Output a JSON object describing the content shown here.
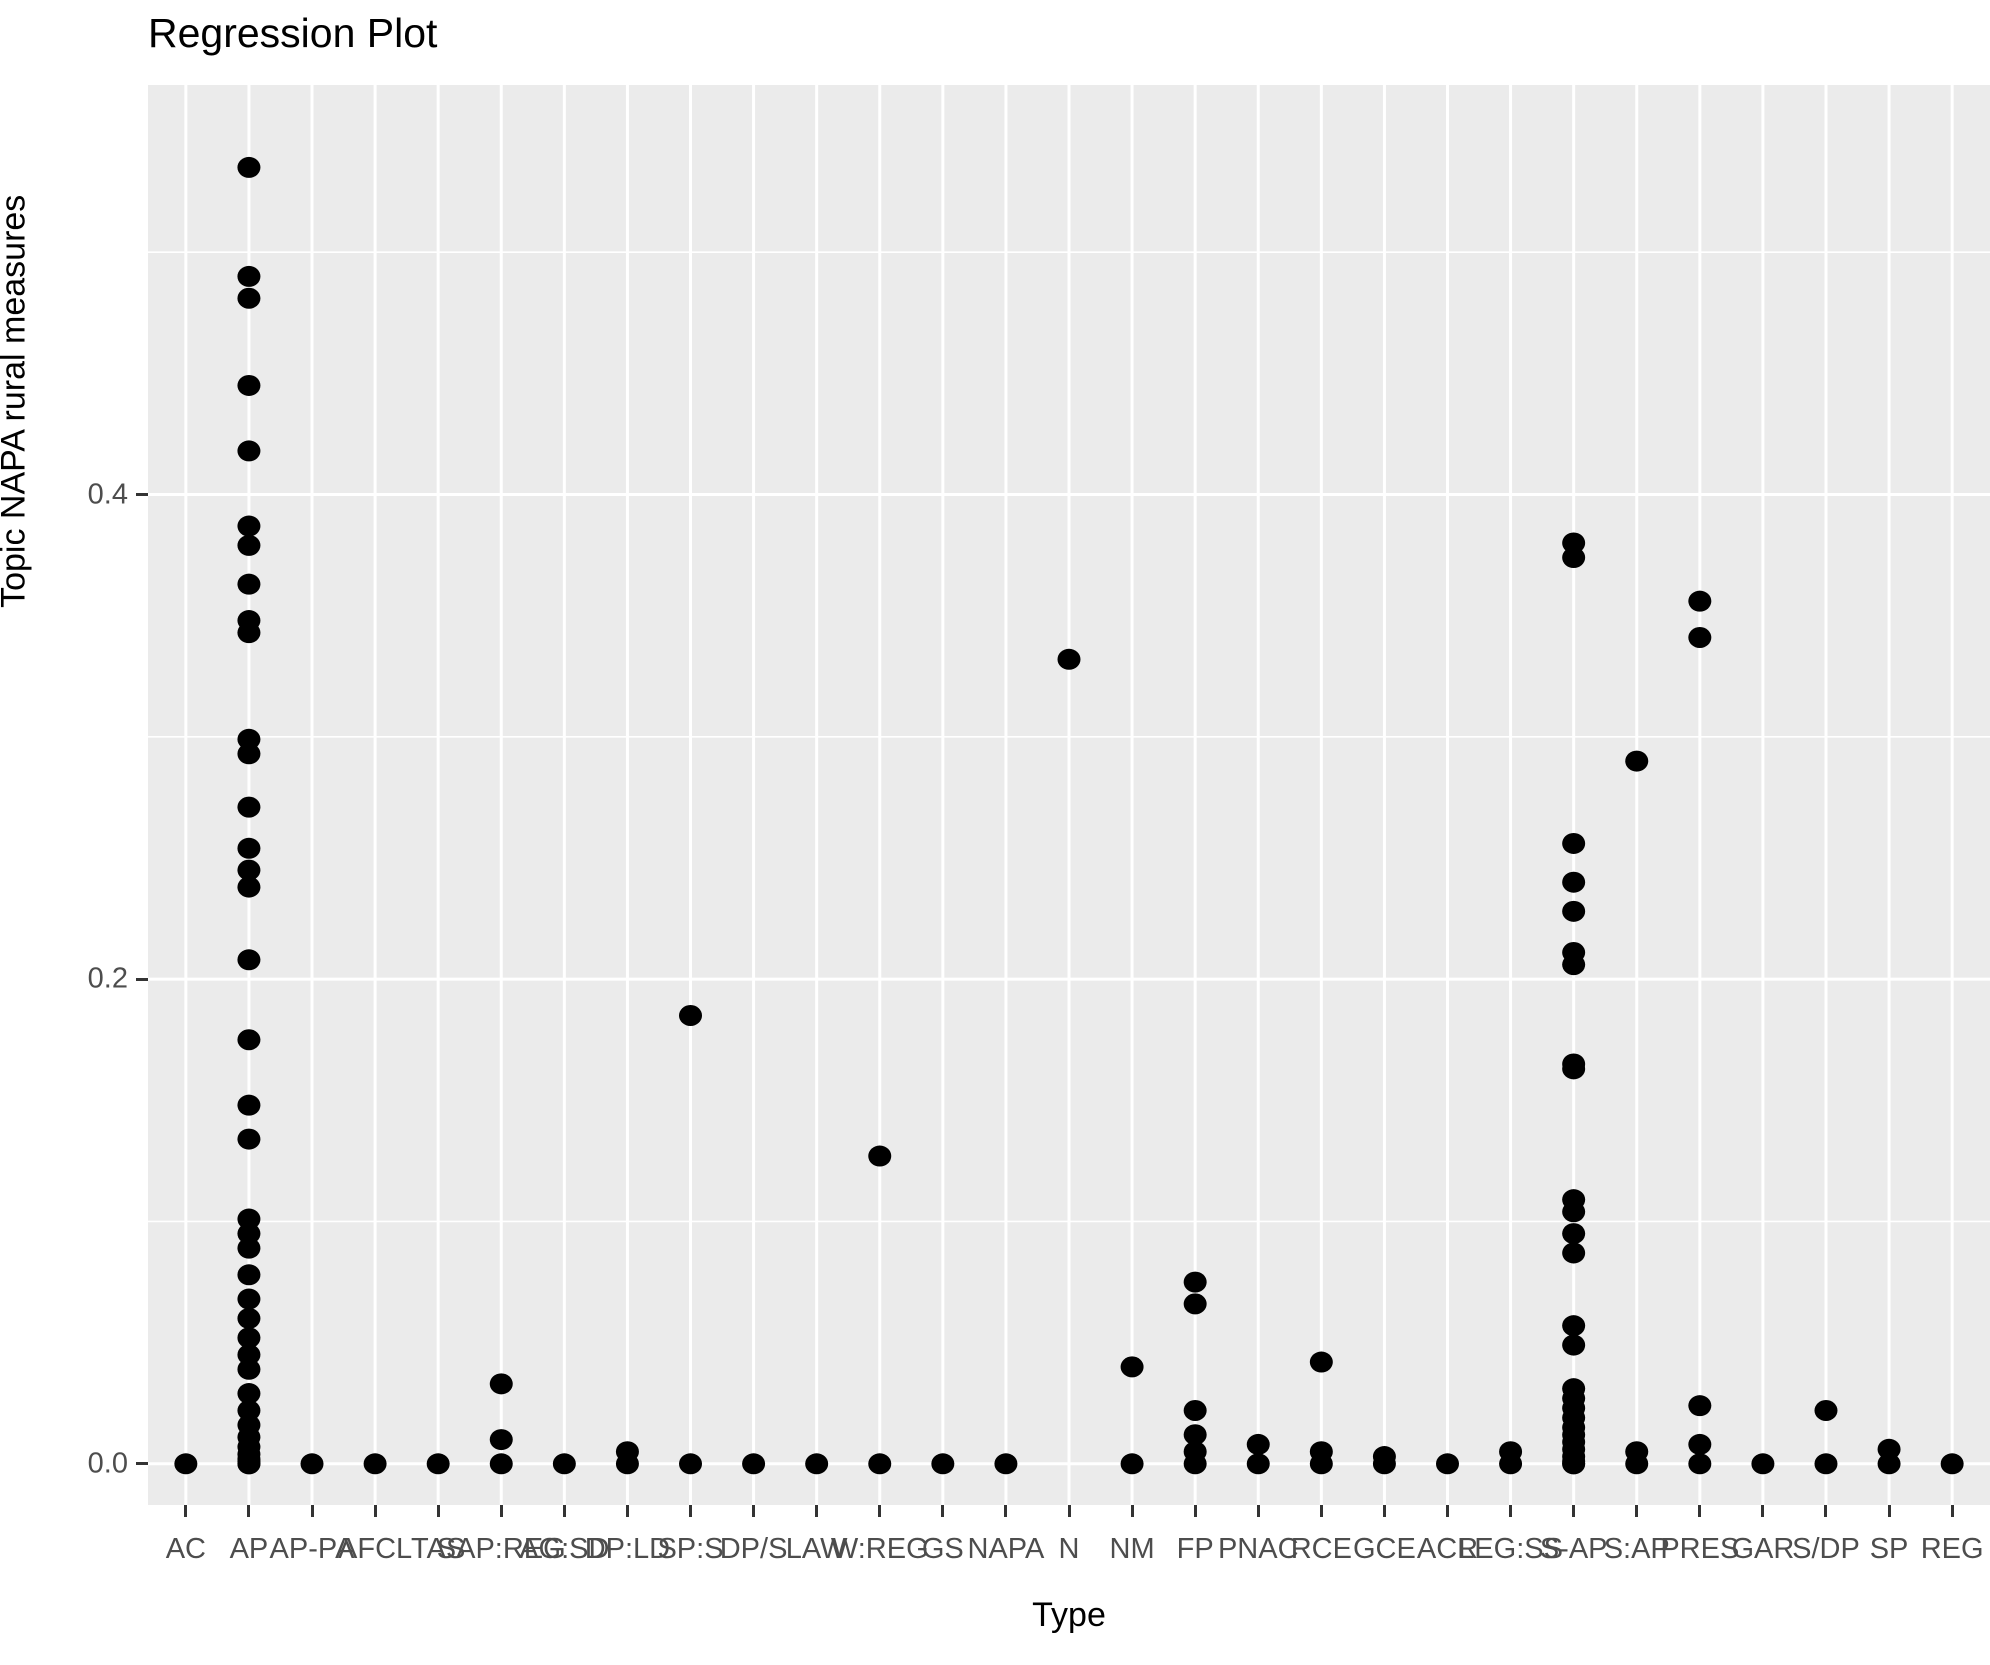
{
  "chart": {
    "title": "Regression Plot",
    "xlabel": "Type",
    "ylabel": "Topic NAPA rural measures"
  },
  "chart_data": {
    "type": "scatter",
    "title": "Regression Plot",
    "xlabel": "Type",
    "ylabel": "Topic NAPA rural measures",
    "legend_position": "none",
    "grid": true,
    "panel_background": "#EBEBEB",
    "gridline_color": "#FFFFFF",
    "point_color": "#000000",
    "axis_text_color": "#4D4D4D",
    "y_tick_labels": [
      "0.0",
      "0.2",
      "0.4"
    ],
    "y_ticks": [
      0.0,
      0.2,
      0.4
    ],
    "y_minor_gridlines": [
      0.1,
      0.3,
      0.5
    ],
    "ylim": [
      -0.017,
      0.569
    ],
    "categories": [
      {
        "label": "AC",
        "values": [
          0
        ]
      },
      {
        "label": "AP",
        "values": [
          0.535,
          0.49,
          0.481,
          0.445,
          0.418,
          0.387,
          0.379,
          0.363,
          0.348,
          0.343,
          0.299,
          0.293,
          0.271,
          0.254,
          0.245,
          0.238,
          0.208,
          0.175,
          0.148,
          0.134,
          0.101,
          0.095,
          0.089,
          0.078,
          0.068,
          0.06,
          0.052,
          0.045,
          0.039,
          0.029,
          0.022,
          0.016,
          0.011,
          0.007,
          0.004,
          0.002,
          0.001,
          0,
          0
        ]
      },
      {
        "label": "AP-PA",
        "values": [
          0
        ]
      },
      {
        "label": "AFCL",
        "values": [
          0
        ]
      },
      {
        "label": "TAS",
        "values": [
          0
        ]
      },
      {
        "label": "SAP:REG",
        "values": [
          0.033,
          0.01,
          0
        ]
      },
      {
        "label": "AG:SD",
        "values": [
          0
        ]
      },
      {
        "label": "DP:LD",
        "values": [
          0.005,
          0
        ]
      },
      {
        "label": "SP:S",
        "values": [
          0.185,
          0
        ]
      },
      {
        "label": "DP/S",
        "values": [
          0
        ]
      },
      {
        "label": "LAW",
        "values": [
          0
        ]
      },
      {
        "label": "W:REG",
        "values": [
          0.127,
          0
        ]
      },
      {
        "label": "GS",
        "values": [
          0
        ]
      },
      {
        "label": "NAPA",
        "values": [
          0
        ]
      },
      {
        "label": "N",
        "values": [
          0.332
        ]
      },
      {
        "label": "NM",
        "values": [
          0.04,
          0
        ]
      },
      {
        "label": "FP",
        "values": [
          0.075,
          0.066,
          0.022,
          0.012,
          0.005,
          0
        ]
      },
      {
        "label": "PNAC",
        "values": [
          0.008,
          0
        ]
      },
      {
        "label": "RCE",
        "values": [
          0.042,
          0.005,
          0
        ]
      },
      {
        "label": "GCE",
        "values": [
          0.003,
          0
        ]
      },
      {
        "label": "ACR",
        "values": [
          0
        ]
      },
      {
        "label": "LEG:SS",
        "values": [
          0.005,
          0
        ]
      },
      {
        "label": "S-AP",
        "values": [
          0.38,
          0.374,
          0.256,
          0.24,
          0.228,
          0.211,
          0.206,
          0.165,
          0.163,
          0.109,
          0.104,
          0.095,
          0.087,
          0.057,
          0.049,
          0.031,
          0.027,
          0.023,
          0.019,
          0.015,
          0.012,
          0.009,
          0.006,
          0.003,
          0.001,
          0,
          0
        ]
      },
      {
        "label": "S:AP",
        "values": [
          0.29,
          0.005,
          0
        ]
      },
      {
        "label": "PRES",
        "values": [
          0.356,
          0.341,
          0.024,
          0.008,
          0
        ]
      },
      {
        "label": "GAR",
        "values": [
          0
        ]
      },
      {
        "label": "S/DP",
        "values": [
          0.022,
          0
        ]
      },
      {
        "label": "SP",
        "values": [
          0.006,
          0
        ]
      },
      {
        "label": "REG",
        "values": [
          0
        ]
      }
    ]
  }
}
